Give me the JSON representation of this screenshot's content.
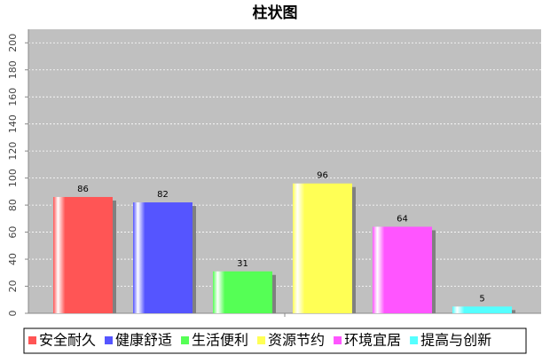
{
  "chart_data": {
    "type": "bar",
    "title": "柱状图",
    "categories": [
      null
    ],
    "series": [
      {
        "name": "安全耐久",
        "color": "#ff5555",
        "values": [
          86
        ]
      },
      {
        "name": "健康舒适",
        "color": "#5555ff",
        "values": [
          82
        ]
      },
      {
        "name": "生活便利",
        "color": "#55ff55",
        "values": [
          31
        ]
      },
      {
        "name": "资源节约",
        "color": "#ffff55",
        "values": [
          96
        ]
      },
      {
        "name": "环境宜居",
        "color": "#ff55ff",
        "values": [
          64
        ]
      },
      {
        "name": "提高与创新",
        "color": "#55ffff",
        "values": [
          5
        ]
      }
    ],
    "ylim": [
      0,
      210
    ],
    "yticks": [
      0,
      20,
      40,
      60,
      80,
      100,
      120,
      140,
      160,
      180,
      200
    ],
    "grid": true,
    "legend": "bottom"
  }
}
